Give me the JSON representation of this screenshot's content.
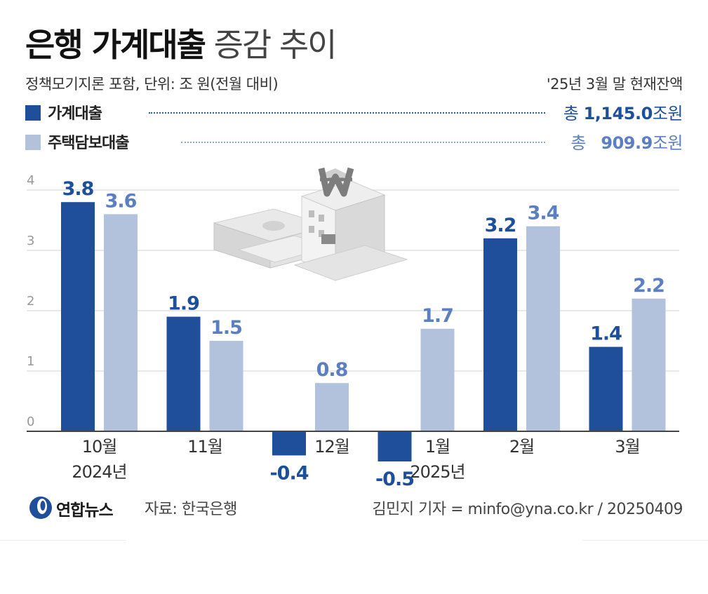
{
  "title": {
    "bold": "은행 가계대출",
    "light": "증감 추이"
  },
  "subtitle": "정책모기지론 포함, 단위: 조 원(전월 대비)",
  "balance_caption": "'25년 3월 말 현재잔액",
  "legend": [
    {
      "name": "가계대출",
      "color": "#1f4e9a",
      "total_prefix": "총",
      "total_value": "1,145.0",
      "total_unit": "조원"
    },
    {
      "name": "주택담보대출",
      "color": "#b2c1dc",
      "total_prefix": "총",
      "total_value": "909.9",
      "total_unit": "조원"
    }
  ],
  "footer": {
    "logo_text": "연합뉴스",
    "source": "자료: 한국은행",
    "credit": "김민지 기자 = minfo@yna.co.kr / 20250409"
  },
  "colors": {
    "household": "#1f4e9a",
    "mortgage": "#b2c1dc",
    "household_label": "#1e4f9a",
    "mortgage_label": "#5b7fc0",
    "grid": "#e2e2e2"
  },
  "chart_data": {
    "type": "bar",
    "categories": [
      "10월",
      "11월",
      "12월",
      "1월",
      "2월",
      "3월"
    ],
    "year_labels": [
      {
        "category": "10월",
        "label": "2024년"
      },
      {
        "category": "1월",
        "label": "2025년"
      }
    ],
    "series": [
      {
        "name": "가계대출",
        "values": [
          3.8,
          1.9,
          -0.4,
          -0.5,
          3.2,
          1.4
        ]
      },
      {
        "name": "주택담보대출",
        "values": [
          3.6,
          1.5,
          0.8,
          1.7,
          3.4,
          2.2
        ]
      }
    ],
    "value_labels": [
      [
        "3.8",
        "1.9",
        "-0.4",
        "-0.5",
        "3.2",
        "1.4"
      ],
      [
        "3.6",
        "1.5",
        "0.8",
        "1.7",
        "3.4",
        "2.2"
      ]
    ],
    "yticks": [
      "0",
      "1",
      "2",
      "3",
      "4"
    ],
    "ylim": [
      -0.5,
      4
    ],
    "grid": true,
    "legend_placement": "top"
  }
}
